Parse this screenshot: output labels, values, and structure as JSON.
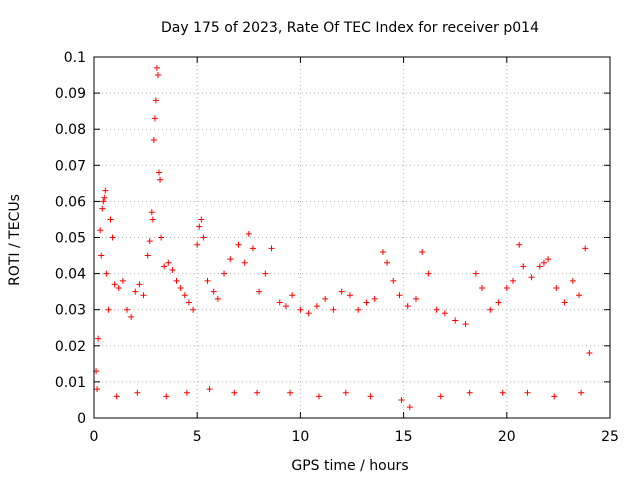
{
  "chart_data": {
    "type": "scatter",
    "title": "Day 175 of 2023, Rate Of TEC Index for receiver p014",
    "xlabel": "GPS time / hours",
    "ylabel": "ROTI / TECUs",
    "xlim": [
      0,
      25
    ],
    "ylim": [
      0,
      0.1
    ],
    "xticks": [
      "0",
      "5",
      "10",
      "15",
      "20",
      "25"
    ],
    "yticks": [
      "0",
      "0.01",
      "0.02",
      "0.03",
      "0.04",
      "0.05",
      "0.06",
      "0.07",
      "0.08",
      "0.09",
      "0.1"
    ],
    "grid": true,
    "marker": "+",
    "color": "#ff0000",
    "series": [
      {
        "name": "ROTI",
        "points": [
          [
            0.1,
            0.013
          ],
          [
            0.2,
            0.022
          ],
          [
            0.3,
            0.052
          ],
          [
            0.35,
            0.045
          ],
          [
            0.4,
            0.058
          ],
          [
            0.45,
            0.06
          ],
          [
            0.5,
            0.061
          ],
          [
            0.55,
            0.063
          ],
          [
            0.6,
            0.04
          ],
          [
            0.7,
            0.03
          ],
          [
            0.8,
            0.055
          ],
          [
            0.9,
            0.05
          ],
          [
            1.0,
            0.037
          ],
          [
            1.2,
            0.036
          ],
          [
            1.4,
            0.038
          ],
          [
            1.6,
            0.03
          ],
          [
            1.8,
            0.028
          ],
          [
            2.0,
            0.035
          ],
          [
            2.2,
            0.037
          ],
          [
            2.4,
            0.034
          ],
          [
            2.6,
            0.045
          ],
          [
            2.7,
            0.049
          ],
          [
            2.8,
            0.057
          ],
          [
            2.85,
            0.055
          ],
          [
            2.9,
            0.077
          ],
          [
            2.95,
            0.083
          ],
          [
            3.0,
            0.088
          ],
          [
            3.05,
            0.097
          ],
          [
            3.1,
            0.095
          ],
          [
            3.15,
            0.068
          ],
          [
            3.2,
            0.066
          ],
          [
            3.25,
            0.05
          ],
          [
            3.4,
            0.042
          ],
          [
            3.6,
            0.043
          ],
          [
            3.8,
            0.041
          ],
          [
            4.0,
            0.038
          ],
          [
            4.2,
            0.036
          ],
          [
            4.4,
            0.034
          ],
          [
            4.6,
            0.032
          ],
          [
            4.8,
            0.03
          ],
          [
            5.0,
            0.048
          ],
          [
            5.1,
            0.053
          ],
          [
            5.2,
            0.055
          ],
          [
            5.3,
            0.05
          ],
          [
            5.5,
            0.038
          ],
          [
            5.8,
            0.035
          ],
          [
            6.0,
            0.033
          ],
          [
            6.3,
            0.04
          ],
          [
            6.6,
            0.044
          ],
          [
            7.0,
            0.048
          ],
          [
            7.3,
            0.043
          ],
          [
            7.5,
            0.051
          ],
          [
            7.7,
            0.047
          ],
          [
            8.0,
            0.035
          ],
          [
            8.3,
            0.04
          ],
          [
            8.6,
            0.047
          ],
          [
            9.0,
            0.032
          ],
          [
            9.3,
            0.031
          ],
          [
            9.6,
            0.034
          ],
          [
            10.0,
            0.03
          ],
          [
            10.4,
            0.029
          ],
          [
            10.8,
            0.031
          ],
          [
            11.2,
            0.033
          ],
          [
            11.6,
            0.03
          ],
          [
            12.0,
            0.035
          ],
          [
            12.4,
            0.034
          ],
          [
            12.8,
            0.03
          ],
          [
            13.2,
            0.032
          ],
          [
            13.6,
            0.033
          ],
          [
            14.0,
            0.046
          ],
          [
            14.2,
            0.043
          ],
          [
            14.5,
            0.038
          ],
          [
            14.8,
            0.034
          ],
          [
            15.2,
            0.031
          ],
          [
            15.6,
            0.033
          ],
          [
            15.9,
            0.046
          ],
          [
            16.2,
            0.04
          ],
          [
            16.6,
            0.03
          ],
          [
            17.0,
            0.029
          ],
          [
            17.5,
            0.027
          ],
          [
            18.0,
            0.026
          ],
          [
            18.5,
            0.04
          ],
          [
            18.8,
            0.036
          ],
          [
            19.2,
            0.03
          ],
          [
            19.6,
            0.032
          ],
          [
            20.0,
            0.036
          ],
          [
            20.3,
            0.038
          ],
          [
            20.6,
            0.048
          ],
          [
            20.8,
            0.042
          ],
          [
            21.2,
            0.039
          ],
          [
            21.6,
            0.042
          ],
          [
            21.8,
            0.043
          ],
          [
            22.0,
            0.044
          ],
          [
            22.4,
            0.036
          ],
          [
            22.8,
            0.032
          ],
          [
            23.2,
            0.038
          ],
          [
            23.5,
            0.034
          ],
          [
            23.8,
            0.047
          ],
          [
            24.0,
            0.018
          ],
          [
            0.15,
            0.008
          ],
          [
            1.1,
            0.006
          ],
          [
            2.1,
            0.007
          ],
          [
            3.5,
            0.006
          ],
          [
            4.5,
            0.007
          ],
          [
            5.6,
            0.008
          ],
          [
            6.8,
            0.007
          ],
          [
            7.9,
            0.007
          ],
          [
            9.5,
            0.007
          ],
          [
            10.9,
            0.006
          ],
          [
            12.2,
            0.007
          ],
          [
            13.4,
            0.006
          ],
          [
            14.9,
            0.005
          ],
          [
            15.3,
            0.003
          ],
          [
            16.8,
            0.006
          ],
          [
            18.2,
            0.007
          ],
          [
            19.8,
            0.007
          ],
          [
            21.0,
            0.007
          ],
          [
            22.3,
            0.006
          ],
          [
            23.6,
            0.007
          ]
        ]
      }
    ]
  }
}
